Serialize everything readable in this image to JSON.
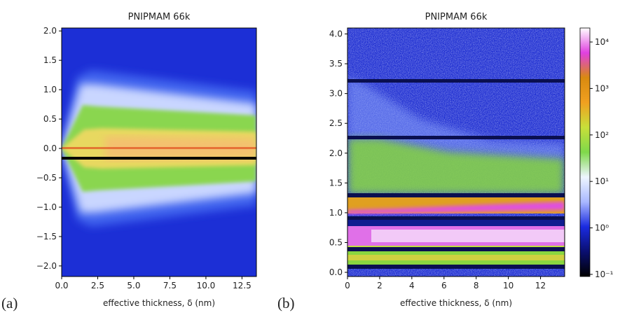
{
  "chart_data": [
    {
      "type": "heatmap",
      "title": "PNIPMAM 66k",
      "xlabel": "effective thickness, δ (nm)",
      "panel_label": "(a)",
      "xlim": [
        0,
        13.5
      ],
      "xticks": [
        {
          "value": 0,
          "label": "0.0"
        },
        2.5,
        {
          "value": 5,
          "label": "5.0"
        },
        7.5,
        {
          "value": 10,
          "label": "10.0"
        },
        12.5
      ],
      "ylim": [
        -2.18,
        2.05
      ],
      "yticks": [
        {
          "value": -2,
          "label": "−2.0"
        },
        {
          "value": -1.5,
          "label": "−1.5"
        },
        {
          "value": -1,
          "label": "−1.0"
        },
        {
          "value": -0.5,
          "label": "−0.5"
        },
        {
          "value": 0,
          "label": "0.0"
        },
        0.5,
        {
          "value": 1,
          "label": "1.0"
        },
        1.5,
        {
          "value": 2,
          "label": "2.0"
        }
      ]
    },
    {
      "type": "heatmap",
      "title": "PNIPMAM 66k",
      "xlabel": "effective thickness, δ (nm)",
      "panel_label": "(b)",
      "xlim": [
        0,
        13.5
      ],
      "xticks": [
        0,
        2,
        4,
        6,
        8,
        10,
        12
      ],
      "ylim": [
        -0.07,
        4.1
      ],
      "yticks": [
        {
          "value": 0,
          "label": "0.0"
        },
        0.5,
        {
          "value": 1,
          "label": "1.0"
        },
        1.5,
        {
          "value": 2,
          "label": "2.0"
        },
        2.5,
        {
          "value": 3,
          "label": "3.0"
        },
        3.5,
        {
          "value": 4,
          "label": "4.0"
        }
      ],
      "colorbar": {
        "scale": "log",
        "lim": [
          0.09,
          20000
        ],
        "ticks": [
          {
            "value": 0.1,
            "label": "10⁻¹"
          },
          {
            "value": 1,
            "label": "10⁰"
          },
          {
            "value": 10,
            "label": "10¹"
          },
          {
            "value": 100,
            "label": "10²"
          },
          {
            "value": 1000,
            "label": "10³"
          },
          {
            "value": 10000,
            "label": "10⁴"
          }
        ],
        "colormap": [
          "#000000",
          "#0a0f70",
          "#1a2be0",
          "#a9b8ff",
          "#eef6ff",
          "#7fd84a",
          "#c8df3a",
          "#f0a020",
          "#d98a10",
          "#e040e0",
          "#ffffff"
        ]
      }
    }
  ]
}
